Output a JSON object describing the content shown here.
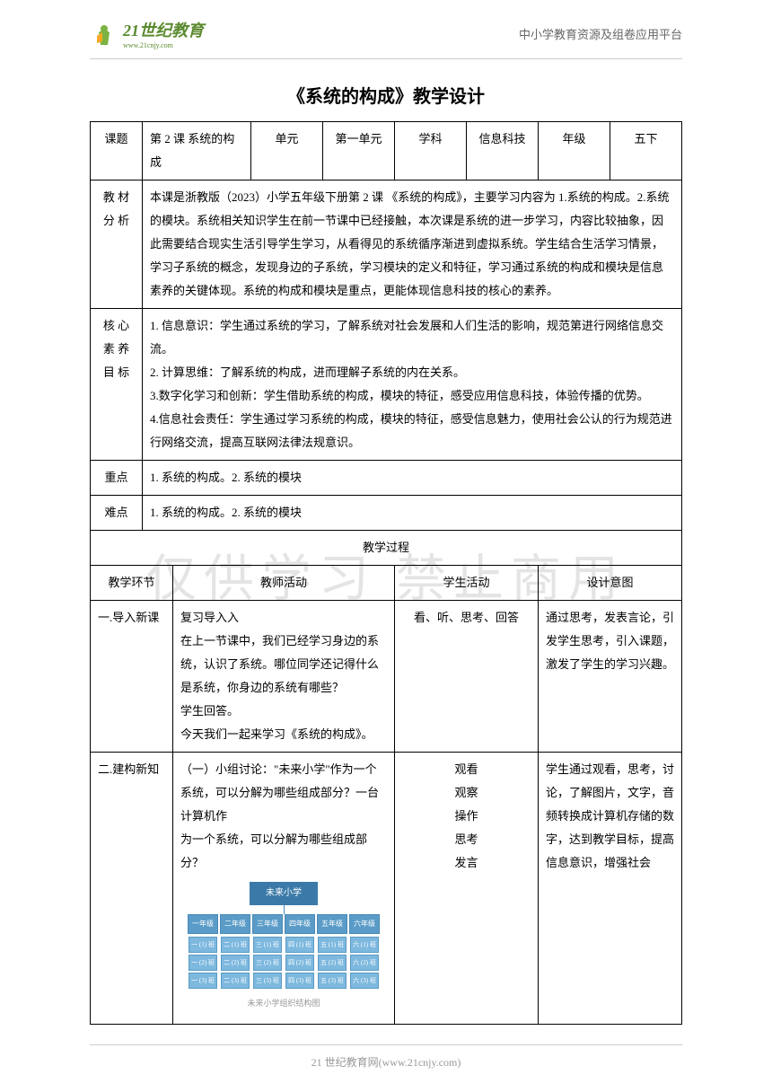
{
  "header": {
    "logo_main": "21世纪教育",
    "logo_sub": "www.21cnjy.com",
    "right_text": "中小学教育资源及组卷应用平台"
  },
  "title": "《系统的构成》教学设计",
  "row1": {
    "c1": "课题",
    "c2": "第 2 课 系统的构成",
    "c3": "单元",
    "c4": "第一单元",
    "c5": "学科",
    "c6": "信息科技",
    "c7": "年级",
    "c8": "五下"
  },
  "material": {
    "label": "教 材分 析",
    "content": "本课是浙教版（2023）小学五年级下册第 2 课 《系统的构成》，主要学习内容为 1.系统的构成。2.系统的模块。系统相关知识学生在前一节课中已经接触，本次课是系统的进一步学习，内容比较抽象，因此需要结合现实生活引导学生学习，从看得见的系统循序渐进到虚拟系统。学生结合生活学习情景，学习子系统的概念，发现身边的子系统，学习模块的定义和特征，学习通过系统的构成和模块是信息素养的关键体现。系统的构成和模块是重点，更能体现信息科技的核心的素养。"
  },
  "core": {
    "label": "核 心素 养目 标",
    "p1": "1. 信息意识：学生通过系统的学习，了解系统对社会发展和人们生活的影响，规范第进行网络信息交流。",
    "p2": "2. 计算思维：了解系统的构成，进而理解子系统的内在关系。",
    "p3": "3.数字化学习和创新：学生借助系统的构成，模块的特征，感受应用信息科技，体验传播的优势。",
    "p4": "4.信息社会责任：学生通过学习系统的构成，模块的特征，感受信息魅力，使用社会公认的行为规范进行网络交流，提高互联网法律法规意识。"
  },
  "focus": {
    "label": "重点",
    "content": "1. 系统的构成。2. 系统的模块"
  },
  "difficulty": {
    "label": "难点",
    "content": "1. 系统的构成。2. 系统的模块"
  },
  "process_title": "教学过程",
  "process_header": {
    "c1": "教学环节",
    "c2": "教师活动",
    "c3": "学生活动",
    "c4": "设计意图"
  },
  "section1": {
    "c1": "一.导入新课",
    "c2_p1": "复习导入入",
    "c2_p2": "在上一节课中，我们已经学习身边的系统，认识了系统。哪位同学还记得什么是系统，你身边的系统有哪些？",
    "c2_p3": "学生回答。",
    "c2_p4": "今天我们一起来学习《系统的构成》。",
    "c3": "看、听、思考、回答",
    "c4": "通过思考，发表言论，引发学生思考，引入课题，激发了学生的学习兴趣。"
  },
  "section2": {
    "c1": "二.建构新知",
    "c2_p1": "（一）小组讨论：\"未来小学\"作为一个系统，可以分解为哪些组成部分？一台计算机作",
    "c2_p2": "为一个系统，可以分解为哪些组成部分？",
    "c3_p1": "观看",
    "c3_p2": "观察",
    "c3_p3": "操作",
    "c3_p4": "思考",
    "c3_p5": "发言",
    "c4": "学生通过观看，思考，讨论，了解图片，文字，音频转换成计算机存储的数字，达到教学目标，提高信息意识，增强社会"
  },
  "org_chart": {
    "root": "未来小学",
    "grades": [
      "一年级",
      "二年级",
      "三年级",
      "四年级",
      "五年级",
      "六年级"
    ],
    "classes_template": [
      "(1) 班",
      "(2) 班",
      "(3) 班"
    ],
    "caption": "未来小学组织结构图",
    "root_color": "#3b7aa8",
    "grade_color": "#5a9bc7",
    "class_color": "#7db8de"
  },
  "watermark": "仅供学习 禁止商用",
  "footer": "21 世纪教育网(www.21cnjy.com)"
}
